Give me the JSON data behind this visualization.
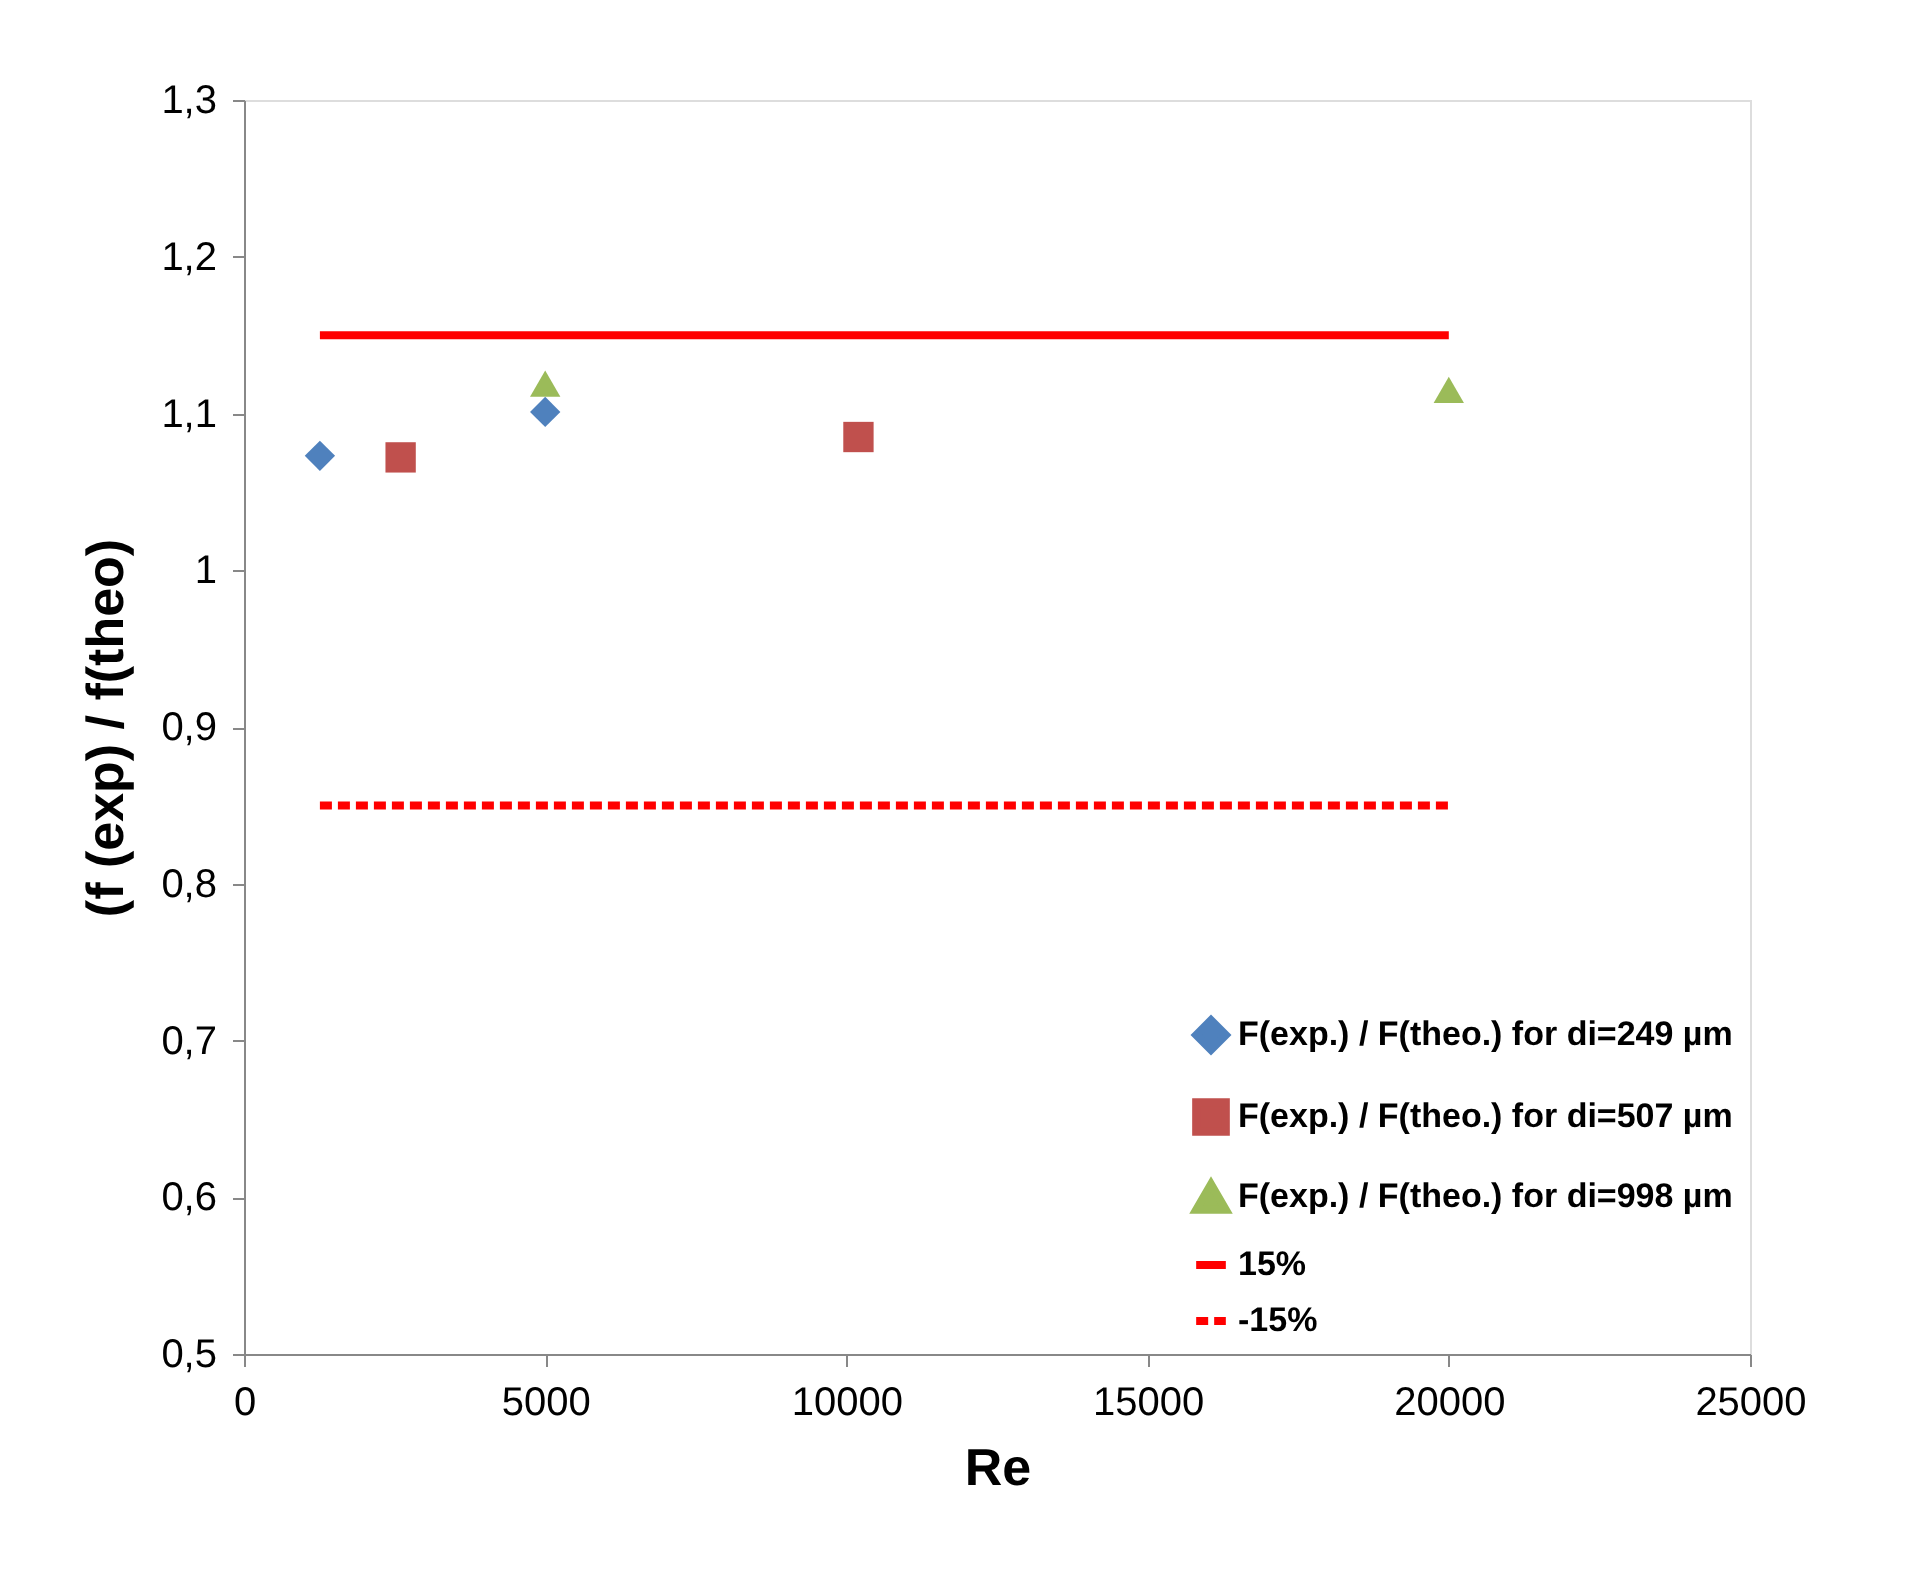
{
  "chart_data": {
    "type": "scatter",
    "xlabel": "Re",
    "ylabel": "(f (exp) / f(theo)",
    "xlim": [
      0,
      25000
    ],
    "xticks": [
      0,
      5000,
      10000,
      15000,
      20000,
      25000
    ],
    "ylim": [
      0.5,
      1.3
    ],
    "yticks": [
      {
        "value": 0.5,
        "label": "0,5"
      },
      {
        "value": 0.6,
        "label": "0,6"
      },
      {
        "value": 0.7,
        "label": "0,7"
      },
      {
        "value": 0.8,
        "label": "0,8"
      },
      {
        "value": 0.9,
        "label": "0,9"
      },
      1,
      {
        "value": 1.1,
        "label": "1,1"
      },
      {
        "value": 1.2,
        "label": "1,2"
      },
      {
        "value": 1.3,
        "label": "1,3"
      }
    ],
    "grid": false,
    "legend": "bottom right",
    "series": [
      {
        "name": "F(exp.) / F(theo.) for di=249 µm",
        "marker": "diamond",
        "color": "#4f81bd",
        "x": [
          1260,
          5000
        ],
        "values": [
          1.073,
          1.101
        ]
      },
      {
        "name": "F(exp.) / F(theo.) for di=507 µm",
        "marker": "square",
        "color": "#c0504d",
        "x": [
          2600,
          10200
        ],
        "values": [
          1.072,
          1.085
        ]
      },
      {
        "name": "F(exp.) / F(theo.) for di=998 µm",
        "marker": "triangle",
        "color": "#9bbb59",
        "x": [
          5000,
          20000
        ],
        "values": [
          1.119,
          1.115
        ]
      },
      {
        "name": "15%",
        "type": "line",
        "line_style": "solid",
        "color": "#ff0000",
        "x": [
          1260,
          20000
        ],
        "values": [
          1.15,
          1.15
        ]
      },
      {
        "name": "-15%",
        "type": "line",
        "line_style": "dashed",
        "color": "#ff0000",
        "x": [
          1260,
          20000
        ],
        "values": [
          0.85,
          0.85
        ]
      }
    ]
  }
}
